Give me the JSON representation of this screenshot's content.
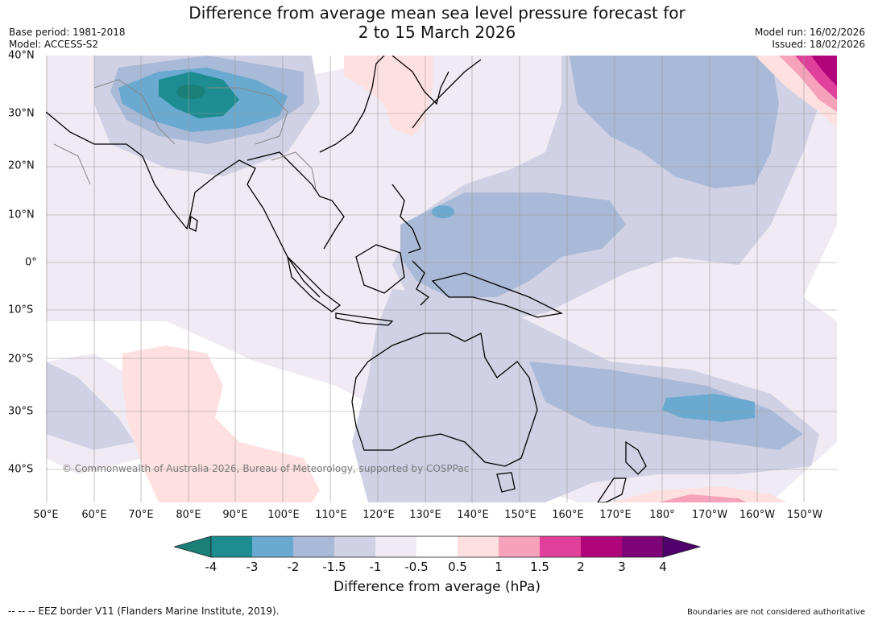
{
  "title": {
    "line1": "Difference from average mean sea level pressure forecast for",
    "line2": "2 to 15 March 2026"
  },
  "meta": {
    "base_period": "Base period: 1981-2018",
    "model": "Model: ACCESS-S2",
    "model_run": "Model run: 16/02/2026",
    "issued": "Issued: 18/02/2026"
  },
  "map": {
    "longitude_labels": [
      "50°E",
      "60°E",
      "70°E",
      "80°E",
      "90°E",
      "100°E",
      "110°E",
      "120°E",
      "130°E",
      "140°E",
      "150°E",
      "160°E",
      "170°E",
      "180°",
      "170°W",
      "160°W",
      "150°W"
    ],
    "latitude_labels": [
      "40°N",
      "30°N",
      "20°N",
      "10°N",
      "0°",
      "10°S",
      "20°S",
      "30°S",
      "40°S"
    ],
    "copyright": "© Commonwealth of Australia 2026, Bureau of Meteorology, supported by COSPPac",
    "features": {
      "strongest_negative": "Northern India / Tibetan Plateau, around -3 to -4 hPa",
      "broad_negative": "Western Pacific, Maritime Continent, Australia, Tasman Sea -1 to -2 hPa",
      "positive": "Northeast Pacific corner up to +3 hPa; Japan, Southern Indian Ocean, Southern Ocean +0.5 to +1 hPa"
    }
  },
  "colorbar": {
    "ticks": [
      "-4",
      "-3",
      "-2",
      "-1.5",
      "-1",
      "-0.5",
      "0.5",
      "1",
      "1.5",
      "2",
      "3",
      "4"
    ],
    "colors": [
      "#1a7f77",
      "#1d8d91",
      "#6aa9d0",
      "#a9bad8",
      "#d0d1e4",
      "#efeaf3",
      "#ffffff",
      "#fde0df",
      "#f6a2ba",
      "#e0409a",
      "#b0047a",
      "#7e0278",
      "#4f006c"
    ],
    "label": "Difference from average (hPa)"
  },
  "footer": {
    "eez": "--  --  -- EEZ border V11 (Flanders Marine Institute, 2019).",
    "boundaries": "Boundaries are not considered authoritative"
  }
}
